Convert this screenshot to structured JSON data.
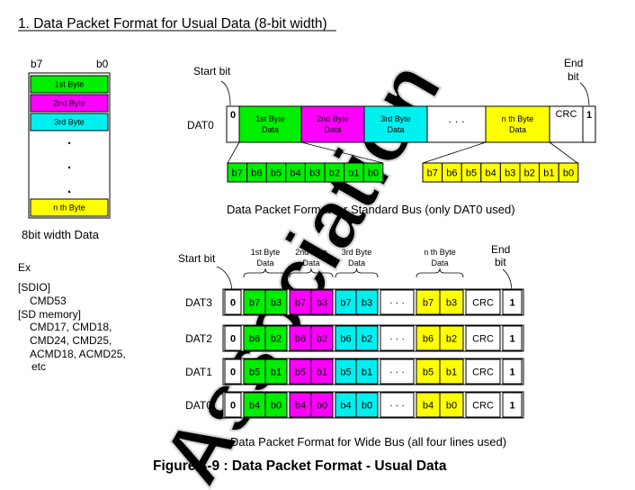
{
  "heading": "1. Data Packet Format for Usual Data (8-bit width)",
  "colors": {
    "green": "#00ee00",
    "magenta": "#ff00ff",
    "cyan": "#00f0f0",
    "yellow": "#ffff00",
    "white": "#ffffff",
    "stroke": "#000000",
    "watermark": "#d8d8d8"
  },
  "byte_column": {
    "msb_label": "b7",
    "lsb_label": "b0",
    "rows": [
      {
        "label": "1st Byte",
        "color": "green"
      },
      {
        "label": "2nd Byte",
        "color": "magenta"
      },
      {
        "label": "3rd Byte",
        "color": "cyan"
      },
      {
        "label": "n th Byte",
        "color": "yellow"
      }
    ],
    "dots": ".",
    "caption": "8bit width Data"
  },
  "examples": {
    "title": "Ex",
    "lines": [
      "[SDIO]",
      "CMD53",
      "[SD memory]",
      "CMD17, CMD18,",
      "CMD24, CMD25,",
      "ACMD18, ACMD25,",
      "etc"
    ]
  },
  "standard_bus": {
    "start_bit_label": "Start bit",
    "end_bit_label": [
      "End",
      "bit"
    ],
    "line_label": "DAT0",
    "start_value": "0",
    "end_value": "1",
    "crc_label": "CRC",
    "ellipsis": "· · ·",
    "byte_fields": [
      {
        "lines": [
          "1st Byte",
          "Data"
        ],
        "color": "green"
      },
      {
        "lines": [
          "2nd Byte",
          "Data"
        ],
        "color": "magenta"
      },
      {
        "lines": [
          "3rd Byte",
          "Data"
        ],
        "color": "cyan"
      },
      {
        "lines": [
          "n th Byte",
          "Data"
        ],
        "color": "yellow"
      }
    ],
    "bit_labels": [
      "b7",
      "b6",
      "b5",
      "b4",
      "b3",
      "b2",
      "b1",
      "b0"
    ],
    "bit_expansions": [
      {
        "color": "green"
      },
      {
        "color": "yellow"
      }
    ],
    "caption": "Data Packet Format for Standard Bus (only DAT0 used)"
  },
  "wide_bus": {
    "start_bit_label": "Start bit",
    "end_bit_label": [
      "End",
      "bit"
    ],
    "byte_headers": [
      {
        "lines": [
          "1st Byte",
          "Data"
        ]
      },
      {
        "lines": [
          "2nd Byte",
          "Data"
        ]
      },
      {
        "lines": [
          "3rd Byte",
          "Data"
        ]
      },
      {
        "lines": [
          "n th Byte",
          "Data"
        ]
      }
    ],
    "byte_colors": [
      "green",
      "magenta",
      "cyan",
      "yellow"
    ],
    "lines": [
      {
        "label": "DAT3",
        "bits": [
          "b7",
          "b3"
        ]
      },
      {
        "label": "DAT2",
        "bits": [
          "b6",
          "b2"
        ]
      },
      {
        "label": "DAT1",
        "bits": [
          "b5",
          "b1"
        ]
      },
      {
        "label": "DAT0",
        "bits": [
          "b4",
          "b0"
        ]
      }
    ],
    "start_value": "0",
    "end_value": "1",
    "crc_label": "CRC",
    "ellipsis": "· · ·",
    "caption": "Data Packet Format for Wide Bus (all four lines used)"
  },
  "figure_caption": "Figure 3-9 : Data Packet Format - Usual Data",
  "watermark": "Association"
}
